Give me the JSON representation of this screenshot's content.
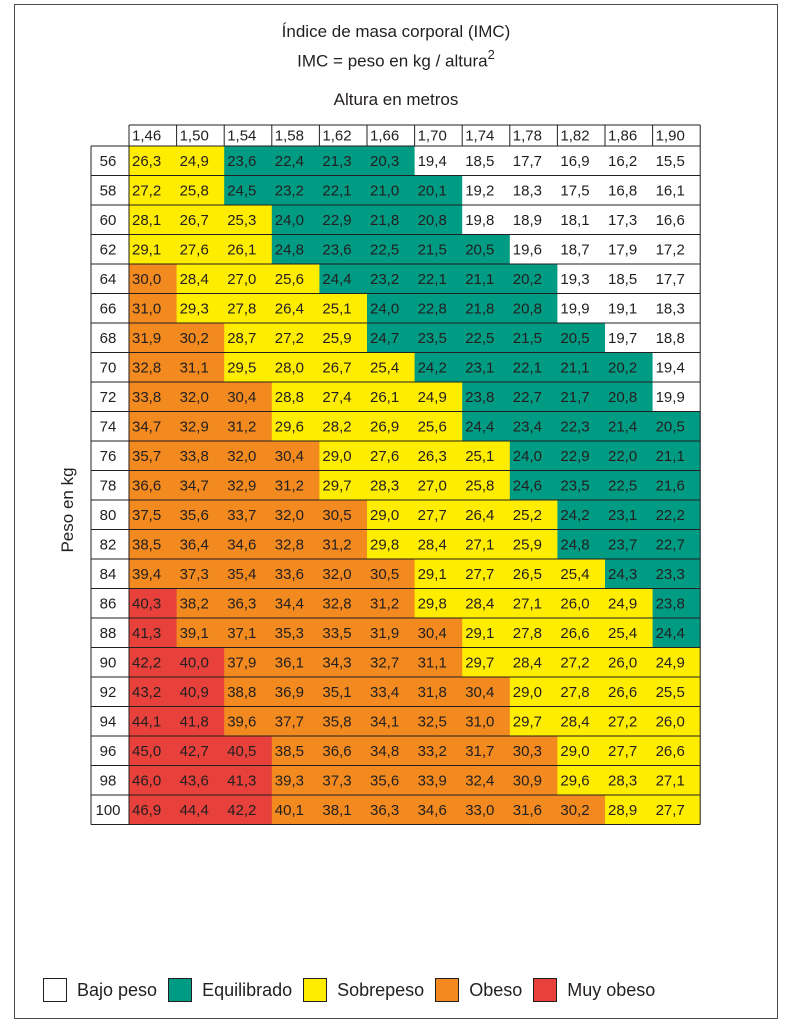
{
  "chart_data": {
    "type": "heatmap",
    "title": "Índice de masa corporal (IMC)",
    "formula_text": "IMC = peso en kg / altura",
    "formula_superscript": "2",
    "xlabel": "Altura en metros",
    "ylabel": "Peso en kg",
    "x": [
      "1,46",
      "1,50",
      "1,54",
      "1,58",
      "1,62",
      "1,66",
      "1,70",
      "1,74",
      "1,78",
      "1,82",
      "1,86",
      "1,90"
    ],
    "y": [
      "56",
      "58",
      "60",
      "62",
      "64",
      "66",
      "68",
      "70",
      "72",
      "74",
      "76",
      "78",
      "80",
      "82",
      "84",
      "86",
      "88",
      "90",
      "92",
      "94",
      "96",
      "98",
      "100"
    ],
    "values": [
      [
        "26,3",
        "24,9",
        "23,6",
        "22,4",
        "21,3",
        "20,3",
        "19,4",
        "18,5",
        "17,7",
        "16,9",
        "16,2",
        "15,5"
      ],
      [
        "27,2",
        "25,8",
        "24,5",
        "23,2",
        "22,1",
        "21,0",
        "20,1",
        "19,2",
        "18,3",
        "17,5",
        "16,8",
        "16,1"
      ],
      [
        "28,1",
        "26,7",
        "25,3",
        "24,0",
        "22,9",
        "21,8",
        "20,8",
        "19,8",
        "18,9",
        "18,1",
        "17,3",
        "16,6"
      ],
      [
        "29,1",
        "27,6",
        "26,1",
        "24,8",
        "23,6",
        "22,5",
        "21,5",
        "20,5",
        "19,6",
        "18,7",
        "17,9",
        "17,2"
      ],
      [
        "30,0",
        "28,4",
        "27,0",
        "25,6",
        "24,4",
        "23,2",
        "22,1",
        "21,1",
        "20,2",
        "19,3",
        "18,5",
        "17,7"
      ],
      [
        "31,0",
        "29,3",
        "27,8",
        "26,4",
        "25,1",
        "24,0",
        "22,8",
        "21,8",
        "20,8",
        "19,9",
        "19,1",
        "18,3"
      ],
      [
        "31,9",
        "30,2",
        "28,7",
        "27,2",
        "25,9",
        "24,7",
        "23,5",
        "22,5",
        "21,5",
        "20,5",
        "19,7",
        "18,8"
      ],
      [
        "32,8",
        "31,1",
        "29,5",
        "28,0",
        "26,7",
        "25,4",
        "24,2",
        "23,1",
        "22,1",
        "21,1",
        "20,2",
        "19,4"
      ],
      [
        "33,8",
        "32,0",
        "30,4",
        "28,8",
        "27,4",
        "26,1",
        "24,9",
        "23,8",
        "22,7",
        "21,7",
        "20,8",
        "19,9"
      ],
      [
        "34,7",
        "32,9",
        "31,2",
        "29,6",
        "28,2",
        "26,9",
        "25,6",
        "24,4",
        "23,4",
        "22,3",
        "21,4",
        "20,5"
      ],
      [
        "35,7",
        "33,8",
        "32,0",
        "30,4",
        "29,0",
        "27,6",
        "26,3",
        "25,1",
        "24,0",
        "22,9",
        "22,0",
        "21,1"
      ],
      [
        "36,6",
        "34,7",
        "32,9",
        "31,2",
        "29,7",
        "28,3",
        "27,0",
        "25,8",
        "24,6",
        "23,5",
        "22,5",
        "21,6"
      ],
      [
        "37,5",
        "35,6",
        "33,7",
        "32,0",
        "30,5",
        "29,0",
        "27,7",
        "26,4",
        "25,2",
        "24,2",
        "23,1",
        "22,2"
      ],
      [
        "38,5",
        "36,4",
        "34,6",
        "32,8",
        "31,2",
        "29,8",
        "28,4",
        "27,1",
        "25,9",
        "24,8",
        "23,7",
        "22,7"
      ],
      [
        "39,4",
        "37,3",
        "35,4",
        "33,6",
        "32,0",
        "30,5",
        "29,1",
        "27,7",
        "26,5",
        "25,4",
        "24,3",
        "23,3"
      ],
      [
        "40,3",
        "38,2",
        "36,3",
        "34,4",
        "32,8",
        "31,2",
        "29,8",
        "28,4",
        "27,1",
        "26,0",
        "24,9",
        "23,8"
      ],
      [
        "41,3",
        "39,1",
        "37,1",
        "35,3",
        "33,5",
        "31,9",
        "30,4",
        "29,1",
        "27,8",
        "26,6",
        "25,4",
        "24,4"
      ],
      [
        "42,2",
        "40,0",
        "37,9",
        "36,1",
        "34,3",
        "32,7",
        "31,1",
        "29,7",
        "28,4",
        "27,2",
        "26,0",
        "24,9"
      ],
      [
        "43,2",
        "40,9",
        "38,8",
        "36,9",
        "35,1",
        "33,4",
        "31,8",
        "30,4",
        "29,0",
        "27,8",
        "26,6",
        "25,5"
      ],
      [
        "44,1",
        "41,8",
        "39,6",
        "37,7",
        "35,8",
        "34,1",
        "32,5",
        "31,0",
        "29,7",
        "28,4",
        "27,2",
        "26,0"
      ],
      [
        "45,0",
        "42,7",
        "40,5",
        "38,5",
        "36,6",
        "34,8",
        "33,2",
        "31,7",
        "30,3",
        "29,0",
        "27,7",
        "26,6"
      ],
      [
        "46,0",
        "43,6",
        "41,3",
        "39,3",
        "37,3",
        "35,6",
        "33,9",
        "32,4",
        "30,9",
        "29,6",
        "28,3",
        "27,1"
      ],
      [
        "46,9",
        "44,4",
        "42,2",
        "40,1",
        "38,1",
        "36,3",
        "34,6",
        "33,0",
        "31,6",
        "30,2",
        "28,9",
        "27,7"
      ]
    ],
    "categories_colors": [
      {
        "label": "Bajo peso",
        "color": "#ffffff"
      },
      {
        "label": "Equilibrado",
        "color": "#009b83"
      },
      {
        "label": "Sobrepeso",
        "color": "#ffed00"
      },
      {
        "label": "Obeso",
        "color": "#f28a1f"
      },
      {
        "label": "Muy obeso",
        "color": "#e8413c"
      }
    ],
    "category_cutoffs": [
      20,
      25,
      30,
      40
    ],
    "category_cutoff_exceptions": {
      "24,9": 2,
      "40,1": 3
    },
    "grid": true,
    "legend_position": "bottom"
  }
}
